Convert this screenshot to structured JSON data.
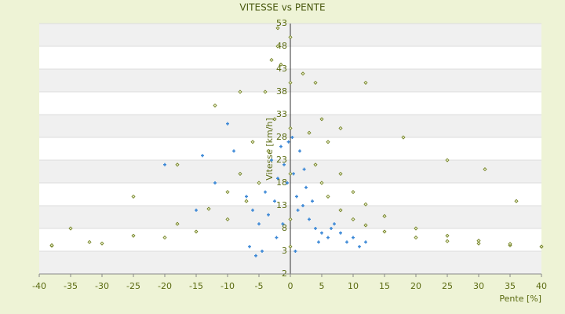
{
  "chart_data": {
    "type": "scatter",
    "title": "VITESSE vs PENTE",
    "x_label": "Pente [%]",
    "y_label": "Vitesse [km/h]",
    "xlim": [
      -40,
      40
    ],
    "xticks": [
      -40,
      -35,
      -30,
      -25,
      -20,
      -15,
      -10,
      -5,
      0,
      5,
      10,
      15,
      20,
      25,
      30,
      35,
      40
    ],
    "ylim": [
      -2,
      53
    ],
    "yticks": [
      -2,
      3,
      8,
      13,
      18,
      23,
      28,
      33,
      38,
      43,
      48,
      53
    ],
    "grid": true,
    "bands": [
      "#ffffff",
      "#f0f0f0"
    ],
    "series": [
      {
        "color": "#3a87d6",
        "x": [
          -1,
          -0.5,
          0.5,
          1,
          1.5,
          2,
          2.5,
          3,
          -1.5,
          -2,
          -2.5,
          -3,
          -3.5,
          -4,
          -5,
          -6,
          4,
          5,
          6,
          7,
          8,
          9,
          10,
          11,
          -7,
          -8,
          -9,
          -10,
          -12,
          -14,
          0.3,
          -0.3,
          1.2,
          -1.2,
          2.2,
          -2.2,
          3.5,
          4.5,
          -4.5,
          -6.5,
          6.5,
          12,
          -15,
          -20,
          -5.5,
          0.8
        ],
        "y": [
          22,
          18,
          20,
          15,
          25,
          13,
          17,
          10,
          26,
          19,
          14,
          23,
          11,
          16,
          9,
          12,
          8,
          7,
          6,
          9,
          7,
          5,
          6,
          4,
          15,
          20,
          25,
          31,
          18,
          24,
          28,
          27,
          12,
          9,
          21,
          6,
          14,
          5,
          3,
          4,
          8,
          5,
          12,
          22,
          2,
          3
        ]
      },
      {
        "color": "#6b7a1a",
        "x": [
          2,
          3,
          4,
          5,
          6,
          8,
          10,
          12,
          15,
          20,
          25,
          30,
          35,
          40,
          4,
          5,
          6,
          8,
          10,
          12,
          15,
          20,
          25,
          30,
          35,
          40,
          -1.5,
          -2.5,
          -3.5,
          -5,
          -7,
          -10,
          -15,
          -20,
          -30,
          -38,
          -3,
          -4,
          -6,
          -8,
          -10,
          -13,
          -18,
          -25,
          -32,
          -38,
          0,
          0,
          0,
          0,
          0,
          0,
          -2,
          -2,
          12,
          8,
          18,
          25,
          31,
          36,
          -18,
          -25,
          -35,
          -12,
          -8
        ],
        "y": [
          42,
          29,
          22,
          18,
          15,
          12,
          10,
          8.7,
          7.3,
          6,
          5.2,
          4.7,
          4.3,
          4,
          40,
          32,
          27,
          20,
          16,
          13.3,
          10.7,
          8,
          6.4,
          5.3,
          4.6,
          4,
          44,
          32,
          25,
          18,
          14,
          10,
          7.3,
          6,
          4.7,
          4.2,
          45,
          38,
          27,
          20,
          16,
          12.3,
          9,
          6.4,
          5,
          4.3,
          50,
          40,
          30,
          20,
          10,
          4,
          52,
          48,
          40,
          30,
          28,
          23,
          21,
          14,
          22,
          15,
          8,
          35,
          38
        ]
      }
    ]
  }
}
